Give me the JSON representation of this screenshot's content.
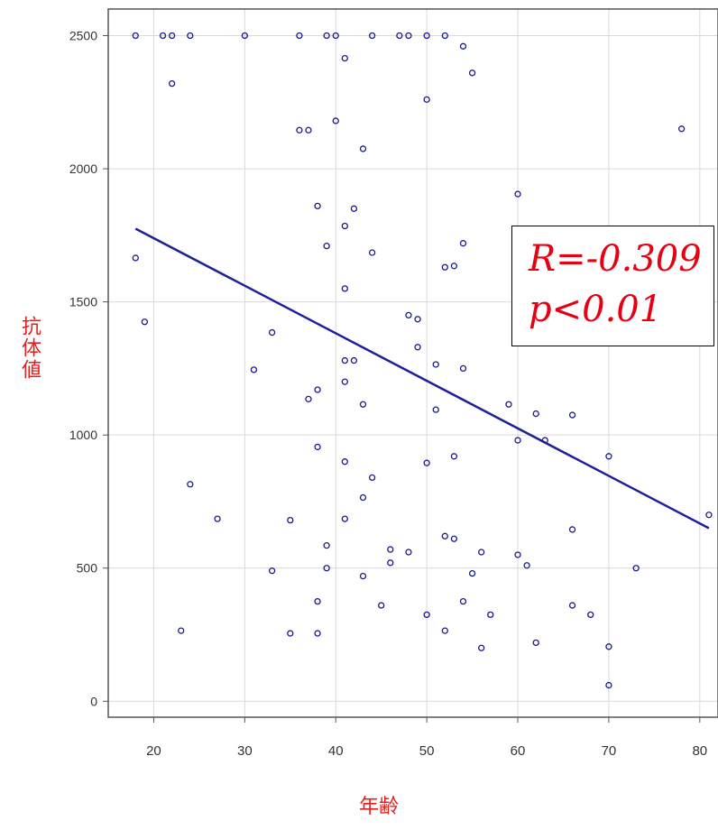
{
  "chart_data": {
    "type": "scatter",
    "title": "",
    "xlabel": "年齢",
    "ylabel": "抗体値",
    "xlim": [
      15,
      82
    ],
    "ylim": [
      -60,
      2600
    ],
    "grid": true,
    "x_ticks": [
      20,
      30,
      40,
      50,
      60,
      70,
      80
    ],
    "y_ticks": [
      0,
      500,
      1000,
      1500,
      2000,
      2500
    ],
    "point_color": "#1a1a8c",
    "line_color": "#1f1f99",
    "points": [
      [
        18,
        2500
      ],
      [
        21,
        2500
      ],
      [
        22,
        2500
      ],
      [
        24,
        2500
      ],
      [
        30,
        2500
      ],
      [
        36,
        2500
      ],
      [
        39,
        2500
      ],
      [
        40,
        2500
      ],
      [
        44,
        2500
      ],
      [
        47,
        2500
      ],
      [
        48,
        2500
      ],
      [
        50,
        2500
      ],
      [
        52,
        2500
      ],
      [
        54,
        2460
      ],
      [
        41,
        2415
      ],
      [
        55,
        2360
      ],
      [
        22,
        2320
      ],
      [
        50,
        2260
      ],
      [
        40,
        2180
      ],
      [
        36,
        2145
      ],
      [
        37,
        2145
      ],
      [
        78,
        2150
      ],
      [
        43,
        2075
      ],
      [
        60,
        1905
      ],
      [
        38,
        1860
      ],
      [
        42,
        1850
      ],
      [
        41,
        1785
      ],
      [
        39,
        1710
      ],
      [
        54,
        1720
      ],
      [
        44,
        1685
      ],
      [
        18,
        1665
      ],
      [
        52,
        1630
      ],
      [
        53,
        1635
      ],
      [
        41,
        1550
      ],
      [
        48,
        1450
      ],
      [
        49,
        1435
      ],
      [
        19,
        1425
      ],
      [
        33,
        1385
      ],
      [
        49,
        1330
      ],
      [
        41,
        1280
      ],
      [
        42,
        1280
      ],
      [
        51,
        1265
      ],
      [
        31,
        1245
      ],
      [
        54,
        1250
      ],
      [
        41,
        1200
      ],
      [
        38,
        1170
      ],
      [
        37,
        1135
      ],
      [
        43,
        1115
      ],
      [
        59,
        1115
      ],
      [
        51,
        1095
      ],
      [
        62,
        1080
      ],
      [
        66,
        1075
      ],
      [
        60,
        980
      ],
      [
        63,
        980
      ],
      [
        38,
        955
      ],
      [
        53,
        920
      ],
      [
        70,
        920
      ],
      [
        41,
        900
      ],
      [
        50,
        895
      ],
      [
        44,
        840
      ],
      [
        24,
        815
      ],
      [
        43,
        765
      ],
      [
        27,
        685
      ],
      [
        35,
        680
      ],
      [
        41,
        685
      ],
      [
        66,
        645
      ],
      [
        52,
        620
      ],
      [
        53,
        610
      ],
      [
        39,
        585
      ],
      [
        46,
        570
      ],
      [
        48,
        560
      ],
      [
        56,
        560
      ],
      [
        60,
        550
      ],
      [
        46,
        520
      ],
      [
        61,
        510
      ],
      [
        33,
        490
      ],
      [
        39,
        500
      ],
      [
        73,
        500
      ],
      [
        43,
        470
      ],
      [
        55,
        480
      ],
      [
        38,
        375
      ],
      [
        54,
        375
      ],
      [
        45,
        360
      ],
      [
        66,
        360
      ],
      [
        50,
        325
      ],
      [
        57,
        325
      ],
      [
        68,
        325
      ],
      [
        23,
        265
      ],
      [
        35,
        255
      ],
      [
        38,
        255
      ],
      [
        52,
        265
      ],
      [
        62,
        220
      ],
      [
        56,
        200
      ],
      [
        70,
        205
      ],
      [
        70,
        60
      ],
      [
        81,
        700
      ]
    ],
    "trendline": {
      "x": [
        18,
        81
      ],
      "y": [
        1775,
        650
      ]
    },
    "annotation": {
      "r_text": "R=-0.309",
      "p_text": "p<0.01"
    }
  }
}
